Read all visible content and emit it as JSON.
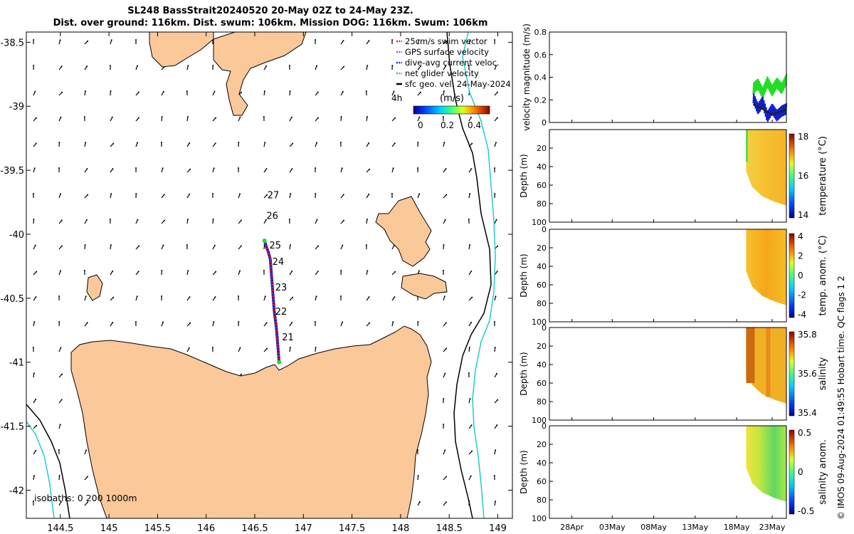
{
  "title_line1": "SL248 BassStrait20240520 20-May 02Z to 24-May 23Z.",
  "title_line2": "Dist. over ground: 116km. Dist. swum: 106km. Mission DOG: 116km. Swum: 106km",
  "map": {
    "x_ticks": [
      "144.5",
      "145",
      "145.5",
      "146",
      "146.5",
      "147",
      "147.5",
      "148",
      "148.5",
      "149"
    ],
    "y_ticks": [
      "-38.5",
      "-39",
      "-39.5",
      "-40",
      "-40.5",
      "-41",
      "-41.5",
      "-42"
    ],
    "legend": [
      "25cm/s swim vector",
      "GPS surface velocity",
      "dive-avg current veloc.",
      "net glider velocity",
      "sfc geo. vel. 24-May-2024"
    ],
    "legend_colors": [
      "#e8141a",
      "#cc33cc",
      "#1020d0",
      "#22dd22",
      "#000000"
    ],
    "colorbar_unit": "(m/s)",
    "colorbar_age": "4h",
    "colorbar_ticks": [
      "0",
      "0.2",
      "0.4"
    ],
    "day_labels": [
      "21",
      "22",
      "23",
      "24",
      "25",
      "26",
      "27"
    ],
    "isobaths_label": "isobaths: 0   200  1000m",
    "land_color": "#fbc89a"
  },
  "panels": {
    "x_ticks": [
      "28Apr",
      "03May",
      "08May",
      "13May",
      "18May",
      "23May"
    ],
    "velocity": {
      "ylabel": "velocity magnitude (m/s)",
      "y_ticks": [
        "0",
        "0.2",
        "0.4",
        "0.6",
        "0.8"
      ]
    },
    "temperature": {
      "ylabel": "Depth (m)",
      "cb_label": "temperature (°C)",
      "y_ticks": [
        "20",
        "40",
        "60",
        "80",
        "100"
      ],
      "cb_ticks": [
        "18",
        "16",
        "14"
      ]
    },
    "temp_anom": {
      "ylabel": "Depth (m)",
      "cb_label": "temp. anom. (°C)",
      "y_ticks": [
        "0",
        "20",
        "40",
        "60",
        "80",
        "100"
      ],
      "cb_ticks": [
        "4",
        "2",
        "0",
        "-2",
        "-4"
      ]
    },
    "salinity": {
      "ylabel": "Depth (m)",
      "cb_label": "salinity",
      "y_ticks": [
        "0",
        "20",
        "40",
        "60",
        "80",
        "100"
      ],
      "cb_ticks": [
        "35.8",
        "35.6",
        "35.4"
      ]
    },
    "sal_anom": {
      "ylabel": "Depth (m)",
      "cb_label": "salinity anom.",
      "y_ticks": [
        "0",
        "20",
        "40",
        "60",
        "80",
        "100"
      ],
      "cb_ticks": [
        "0.5",
        "0",
        "-0.5"
      ]
    }
  },
  "credit": "© IMOS 09-Aug-2024 01:49:55 Hobart time. QC flags 1  2",
  "chart_data": [
    {
      "type": "scatter",
      "title": "SL248 BassStrait20240520 20-May 02Z to 24-May 23Z.",
      "xlim": [
        144.15,
        149.15
      ],
      "ylim": [
        -42.22,
        -38.42
      ],
      "x_ticks": [
        144.5,
        145,
        145.5,
        146,
        146.5,
        147,
        147.5,
        148,
        148.5,
        149
      ],
      "y_ticks": [
        -38.5,
        -39,
        -39.5,
        -40,
        -40.5,
        -41,
        -41.5,
        -42
      ],
      "track": {
        "name": "glider track",
        "x": [
          146.75,
          146.74,
          146.73,
          146.72,
          146.7,
          146.69,
          146.68,
          146.67,
          146.66,
          146.64,
          146.62,
          146.6
        ],
        "y": [
          -41.0,
          -40.9,
          -40.8,
          -40.72,
          -40.6,
          -40.5,
          -40.4,
          -40.3,
          -40.2,
          -40.14,
          -40.1,
          -40.05
        ]
      },
      "day_markers": [
        {
          "label": "21",
          "x": 146.78,
          "y": -40.83
        },
        {
          "label": "22",
          "x": 146.71,
          "y": -40.63
        },
        {
          "label": "23",
          "x": 146.71,
          "y": -40.44
        },
        {
          "label": "24",
          "x": 146.68,
          "y": -40.24
        },
        {
          "label": "25",
          "x": 146.65,
          "y": -40.11
        },
        {
          "label": "26",
          "x": 146.62,
          "y": -39.88
        },
        {
          "label": "27",
          "x": 146.63,
          "y": -39.72
        }
      ]
    },
    {
      "type": "line",
      "ylabel": "velocity magnitude (m/s)",
      "ylim": [
        0,
        0.8
      ],
      "x_ticks": [
        "28Apr",
        "03May",
        "08May",
        "13May",
        "18May",
        "23May"
      ],
      "series": [
        {
          "name": "net glider velocity",
          "x": [
            0.86,
            0.88,
            0.9,
            0.92,
            0.94,
            0.96,
            0.98,
            1.0
          ],
          "values": [
            0.3,
            0.34,
            0.26,
            0.36,
            0.28,
            0.35,
            0.3,
            0.38
          ]
        },
        {
          "name": "dive-avg current veloc.",
          "x": [
            0.86,
            0.88,
            0.9,
            0.92,
            0.94,
            0.96,
            0.98,
            1.0
          ],
          "values": [
            0.22,
            0.12,
            0.18,
            0.05,
            0.12,
            0.06,
            0.1,
            0.12
          ]
        },
        {
          "name": "sfc geo. vel.",
          "x": [
            0.86,
            0.9,
            0.94,
            0.98,
            1.0
          ],
          "values": [
            0.16,
            0.12,
            0.07,
            0.1,
            0.11
          ]
        }
      ]
    },
    {
      "type": "heatmap",
      "cb_label": "temperature (°C)",
      "clim": [
        13,
        18
      ],
      "ylim": [
        0,
        100
      ]
    },
    {
      "type": "heatmap",
      "cb_label": "temp. anom. (°C)",
      "clim": [
        -4,
        4
      ],
      "ylim": [
        0,
        100
      ]
    },
    {
      "type": "heatmap",
      "cb_label": "salinity",
      "clim": [
        35.3,
        35.8
      ],
      "ylim": [
        0,
        100
      ]
    },
    {
      "type": "heatmap",
      "cb_label": "salinity anom.",
      "clim": [
        -0.5,
        0.5
      ],
      "ylim": [
        0,
        100
      ]
    }
  ]
}
